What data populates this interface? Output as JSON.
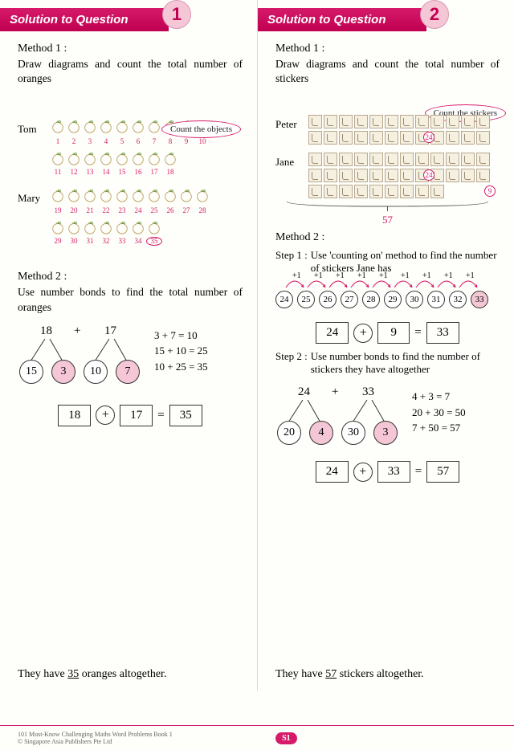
{
  "colors": {
    "accent": "#d61a6a",
    "badge_bg": "#f4c6d6",
    "sticker_fill": "#f5f0e0",
    "sticker_border": "#b8a890"
  },
  "footer": {
    "book": "101 Must-Know Challenging Maths Word Problems Book 1",
    "copyright": "© Singapore Asia Publishers Pte Ltd",
    "page": "S1"
  },
  "q1": {
    "banner": "Solution to Question",
    "num": "1",
    "m1_title": "Method 1 :",
    "m1_desc": "Draw diagrams and count the total number of oranges",
    "bubble": "Count the objects",
    "tom": "Tom",
    "mary": "Mary",
    "tom_rows": [
      [
        1,
        2,
        3,
        4,
        5,
        6,
        7,
        8,
        9,
        10
      ],
      [
        11,
        12,
        13,
        14,
        15,
        16,
        17,
        18
      ]
    ],
    "mary_rows": [
      [
        19,
        20,
        21,
        22,
        23,
        24,
        25,
        26,
        27,
        28
      ],
      [
        29,
        30,
        31,
        32,
        33,
        34,
        35
      ]
    ],
    "circled_last": 35,
    "m2_title": "Method 2 :",
    "m2_desc": "Use number bonds to find the total number of oranges",
    "bond": {
      "a": 18,
      "b": 17,
      "a1": 15,
      "a2": 3,
      "b1": 10,
      "b2": 7
    },
    "eqs": [
      "3 + 7 = 10",
      "15 + 10 = 25",
      "10 + 25 = 35"
    ],
    "result": {
      "a": "18",
      "op": "+",
      "b": "17",
      "eq": "=",
      "c": "35"
    },
    "conclusion_pre": "They have ",
    "conclusion_val": "35",
    "conclusion_post": " oranges altogether."
  },
  "q2": {
    "banner": "Solution to Question",
    "num": "2",
    "m1_title": "Method 1 :",
    "m1_desc": "Draw diagrams and count the total number of stickers",
    "bubble": "Count the stickers",
    "peter": "Peter",
    "jane": "Jane",
    "peter_rows": [
      12,
      12
    ],
    "peter_badge": "24",
    "jane_rows": [
      12,
      12,
      9
    ],
    "jane_badge": "24",
    "jane_last_badge": "9",
    "brace_total": "57",
    "m2_title": "Method 2 :",
    "step1_lab": "Step 1 :",
    "step1_txt": "Use 'counting on' method to find the number of stickers Jane has",
    "count_on": [
      24,
      25,
      26,
      27,
      28,
      29,
      30,
      31,
      32,
      33
    ],
    "count_last": 33,
    "plus1": "+1",
    "result1": {
      "a": "24",
      "op": "+",
      "b": "9",
      "eq": "=",
      "c": "33"
    },
    "step2_lab": "Step 2 :",
    "step2_txt": "Use number bonds to find the number of stickers they have altogether",
    "bond": {
      "a": 24,
      "b": 33,
      "a1": 20,
      "a2": 4,
      "b1": 30,
      "b2": 3
    },
    "eqs": [
      "4 + 3 = 7",
      "20 + 30 = 50",
      "7 + 50 = 57"
    ],
    "result2": {
      "a": "24",
      "op": "+",
      "b": "33",
      "eq": "=",
      "c": "57"
    },
    "conclusion_pre": "They have ",
    "conclusion_val": "57",
    "conclusion_post": " stickers altogether."
  }
}
